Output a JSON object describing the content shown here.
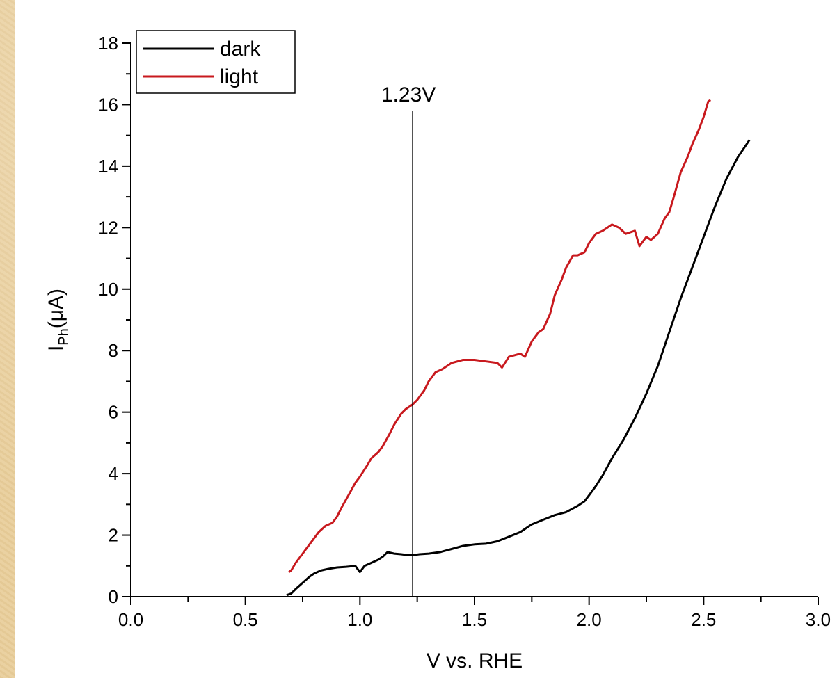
{
  "chart_data": {
    "type": "line",
    "title": "",
    "xlabel": "V vs. RHE",
    "ylabel": {
      "main": "I",
      "sub": "Ph",
      "rest": "(μA)"
    },
    "xlim": [
      0.0,
      3.0
    ],
    "ylim": [
      0,
      18
    ],
    "xticks": [
      "0.0",
      "0.5",
      "1.0",
      "1.5",
      "2.0",
      "2.5",
      "3.0"
    ],
    "yticks": [
      "0",
      "2",
      "4",
      "6",
      "8",
      "10",
      "12",
      "14",
      "16",
      "18"
    ],
    "grid": false,
    "legend": {
      "position": "top-left",
      "entries": [
        {
          "name": "dark",
          "color": "#000000"
        },
        {
          "name": "light",
          "color": "#c8191e"
        }
      ]
    },
    "annotations": [
      {
        "type": "vline",
        "x": 1.23,
        "label": "1.23V"
      }
    ],
    "series": [
      {
        "name": "dark",
        "color": "#000000",
        "x": [
          0.68,
          0.7,
          0.72,
          0.75,
          0.78,
          0.8,
          0.83,
          0.86,
          0.9,
          0.94,
          0.98,
          1.0,
          1.02,
          1.05,
          1.08,
          1.1,
          1.12,
          1.15,
          1.18,
          1.2,
          1.23,
          1.26,
          1.3,
          1.35,
          1.4,
          1.45,
          1.5,
          1.55,
          1.6,
          1.65,
          1.7,
          1.75,
          1.8,
          1.85,
          1.9,
          1.95,
          1.98,
          2.0,
          2.03,
          2.06,
          2.1,
          2.15,
          2.2,
          2.25,
          2.3,
          2.35,
          2.4,
          2.45,
          2.5,
          2.55,
          2.6,
          2.65,
          2.7
        ],
        "y": [
          0.05,
          0.1,
          0.25,
          0.45,
          0.65,
          0.75,
          0.85,
          0.9,
          0.95,
          0.97,
          1.0,
          0.8,
          1.0,
          1.1,
          1.2,
          1.3,
          1.45,
          1.4,
          1.38,
          1.36,
          1.35,
          1.38,
          1.4,
          1.45,
          1.55,
          1.65,
          1.7,
          1.72,
          1.8,
          1.95,
          2.1,
          2.35,
          2.5,
          2.65,
          2.75,
          2.95,
          3.1,
          3.3,
          3.6,
          3.95,
          4.5,
          5.1,
          5.8,
          6.6,
          7.5,
          8.6,
          9.7,
          10.7,
          11.7,
          12.7,
          13.6,
          14.3,
          14.85
        ]
      },
      {
        "name": "light",
        "color": "#c8191e",
        "x": [
          0.69,
          0.7,
          0.72,
          0.75,
          0.78,
          0.82,
          0.85,
          0.88,
          0.9,
          0.92,
          0.95,
          0.98,
          1.0,
          1.03,
          1.05,
          1.08,
          1.1,
          1.13,
          1.15,
          1.18,
          1.2,
          1.23,
          1.25,
          1.28,
          1.3,
          1.33,
          1.36,
          1.4,
          1.45,
          1.5,
          1.55,
          1.6,
          1.62,
          1.65,
          1.7,
          1.72,
          1.75,
          1.78,
          1.8,
          1.83,
          1.85,
          1.88,
          1.9,
          1.93,
          1.95,
          1.98,
          2.0,
          2.03,
          2.06,
          2.1,
          2.13,
          2.16,
          2.2,
          2.22,
          2.25,
          2.27,
          2.3,
          2.33,
          2.35,
          2.37,
          2.4,
          2.43,
          2.45,
          2.48,
          2.5,
          2.52,
          2.53
        ],
        "y": [
          0.8,
          0.85,
          1.1,
          1.4,
          1.7,
          2.1,
          2.3,
          2.4,
          2.6,
          2.9,
          3.3,
          3.7,
          3.9,
          4.25,
          4.5,
          4.7,
          4.9,
          5.3,
          5.6,
          5.95,
          6.1,
          6.25,
          6.4,
          6.7,
          7.0,
          7.3,
          7.4,
          7.6,
          7.7,
          7.7,
          7.65,
          7.6,
          7.45,
          7.8,
          7.9,
          7.8,
          8.3,
          8.6,
          8.7,
          9.2,
          9.8,
          10.3,
          10.7,
          11.1,
          11.1,
          11.2,
          11.5,
          11.8,
          11.9,
          12.1,
          12.0,
          11.8,
          11.9,
          11.4,
          11.7,
          11.6,
          11.8,
          12.3,
          12.5,
          13.0,
          13.8,
          14.3,
          14.7,
          15.2,
          15.6,
          16.1,
          16.15
        ]
      }
    ]
  }
}
